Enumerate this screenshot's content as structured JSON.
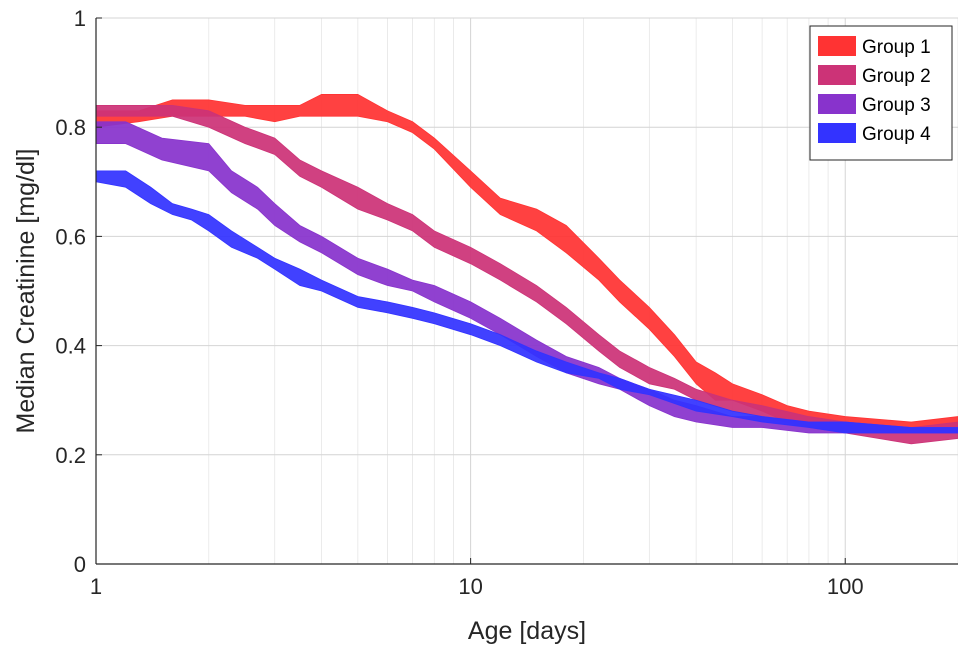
{
  "chart_data": {
    "type": "area",
    "title": "",
    "xlabel": "Age [days]",
    "ylabel": "Median Creatinine [mg/dl]",
    "xscale": "log",
    "xlim": [
      1,
      200
    ],
    "ylim": [
      0,
      1
    ],
    "xticks": [
      1,
      10,
      100
    ],
    "xtick_labels": [
      "1",
      "10",
      "100"
    ],
    "yticks": [
      0,
      0.2,
      0.4,
      0.6,
      0.8,
      1
    ],
    "ytick_labels": [
      "0",
      "0.2",
      "0.4",
      "0.6",
      "0.8",
      "1"
    ],
    "grid": true,
    "minor_grid": true,
    "legend_position": "top-right",
    "series": [
      {
        "name": "Group 1",
        "color": "#ff3333",
        "x": [
          1,
          1.3,
          1.6,
          2,
          2.5,
          3,
          3.5,
          4,
          5,
          6,
          7,
          8,
          10,
          12,
          15,
          18,
          22,
          25,
          30,
          35,
          40,
          45,
          50,
          60,
          70,
          80,
          100,
          150,
          200
        ],
        "lower": [
          0.8,
          0.81,
          0.82,
          0.82,
          0.82,
          0.81,
          0.82,
          0.82,
          0.82,
          0.81,
          0.79,
          0.76,
          0.69,
          0.64,
          0.61,
          0.57,
          0.52,
          0.48,
          0.43,
          0.38,
          0.33,
          0.3,
          0.3,
          0.28,
          0.26,
          0.25,
          0.24,
          0.24,
          0.24
        ],
        "upper": [
          0.83,
          0.83,
          0.85,
          0.85,
          0.84,
          0.84,
          0.84,
          0.86,
          0.86,
          0.83,
          0.81,
          0.78,
          0.72,
          0.67,
          0.65,
          0.62,
          0.56,
          0.52,
          0.47,
          0.42,
          0.37,
          0.35,
          0.33,
          0.31,
          0.29,
          0.28,
          0.27,
          0.26,
          0.27
        ]
      },
      {
        "name": "Group 2",
        "color": "#cc3377",
        "x": [
          1,
          1.3,
          1.6,
          2,
          2.5,
          3,
          3.5,
          4,
          5,
          6,
          7,
          8,
          10,
          12,
          15,
          18,
          22,
          25,
          30,
          35,
          40,
          50,
          60,
          80,
          100,
          150,
          200
        ],
        "lower": [
          0.82,
          0.82,
          0.82,
          0.8,
          0.77,
          0.75,
          0.71,
          0.69,
          0.65,
          0.63,
          0.61,
          0.58,
          0.55,
          0.52,
          0.48,
          0.44,
          0.39,
          0.36,
          0.33,
          0.32,
          0.3,
          0.28,
          0.27,
          0.25,
          0.24,
          0.22,
          0.23
        ],
        "upper": [
          0.84,
          0.84,
          0.84,
          0.83,
          0.8,
          0.78,
          0.74,
          0.72,
          0.69,
          0.66,
          0.64,
          0.61,
          0.58,
          0.55,
          0.51,
          0.47,
          0.42,
          0.39,
          0.36,
          0.34,
          0.32,
          0.3,
          0.29,
          0.27,
          0.26,
          0.25,
          0.26
        ]
      },
      {
        "name": "Group 3",
        "color": "#8833cc",
        "x": [
          1,
          1.2,
          1.5,
          2,
          2.3,
          2.7,
          3,
          3.5,
          4,
          5,
          6,
          7,
          8,
          10,
          12,
          15,
          18,
          22,
          25,
          30,
          35,
          40,
          50,
          60,
          80,
          100,
          150,
          200
        ],
        "lower": [
          0.77,
          0.77,
          0.74,
          0.72,
          0.68,
          0.65,
          0.62,
          0.59,
          0.57,
          0.53,
          0.51,
          0.5,
          0.48,
          0.45,
          0.42,
          0.38,
          0.35,
          0.33,
          0.32,
          0.29,
          0.27,
          0.26,
          0.25,
          0.25,
          0.24,
          0.24,
          0.24,
          0.24
        ],
        "upper": [
          0.81,
          0.81,
          0.78,
          0.77,
          0.72,
          0.69,
          0.66,
          0.62,
          0.6,
          0.56,
          0.54,
          0.52,
          0.51,
          0.48,
          0.45,
          0.41,
          0.38,
          0.36,
          0.34,
          0.32,
          0.3,
          0.29,
          0.27,
          0.27,
          0.26,
          0.26,
          0.25,
          0.25
        ]
      },
      {
        "name": "Group 4",
        "color": "#3333ff",
        "x": [
          1,
          1.2,
          1.4,
          1.6,
          1.8,
          2,
          2.3,
          2.7,
          3,
          3.5,
          4,
          5,
          6,
          7,
          8,
          10,
          12,
          15,
          18,
          22,
          25,
          30,
          40,
          50,
          60,
          80,
          100,
          150,
          200
        ],
        "lower": [
          0.7,
          0.69,
          0.66,
          0.64,
          0.63,
          0.61,
          0.58,
          0.56,
          0.54,
          0.51,
          0.5,
          0.47,
          0.46,
          0.45,
          0.44,
          0.42,
          0.4,
          0.37,
          0.35,
          0.34,
          0.32,
          0.31,
          0.28,
          0.27,
          0.26,
          0.25,
          0.24,
          0.24,
          0.24
        ],
        "upper": [
          0.72,
          0.72,
          0.69,
          0.66,
          0.65,
          0.64,
          0.61,
          0.58,
          0.56,
          0.54,
          0.52,
          0.49,
          0.48,
          0.47,
          0.46,
          0.44,
          0.42,
          0.39,
          0.37,
          0.35,
          0.34,
          0.32,
          0.3,
          0.28,
          0.27,
          0.26,
          0.26,
          0.25,
          0.25
        ]
      }
    ]
  }
}
